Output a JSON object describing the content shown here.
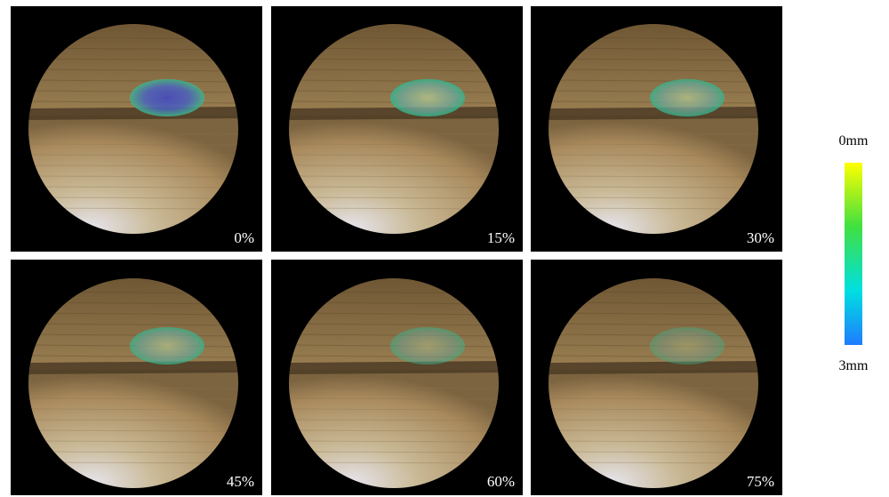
{
  "panels": [
    {
      "label": "0%"
    },
    {
      "label": "15%"
    },
    {
      "label": "30%"
    },
    {
      "label": "45%"
    },
    {
      "label": "60%"
    },
    {
      "label": "75%"
    }
  ],
  "colorbar": {
    "top_label": "0mm",
    "bottom_label": "3mm"
  }
}
